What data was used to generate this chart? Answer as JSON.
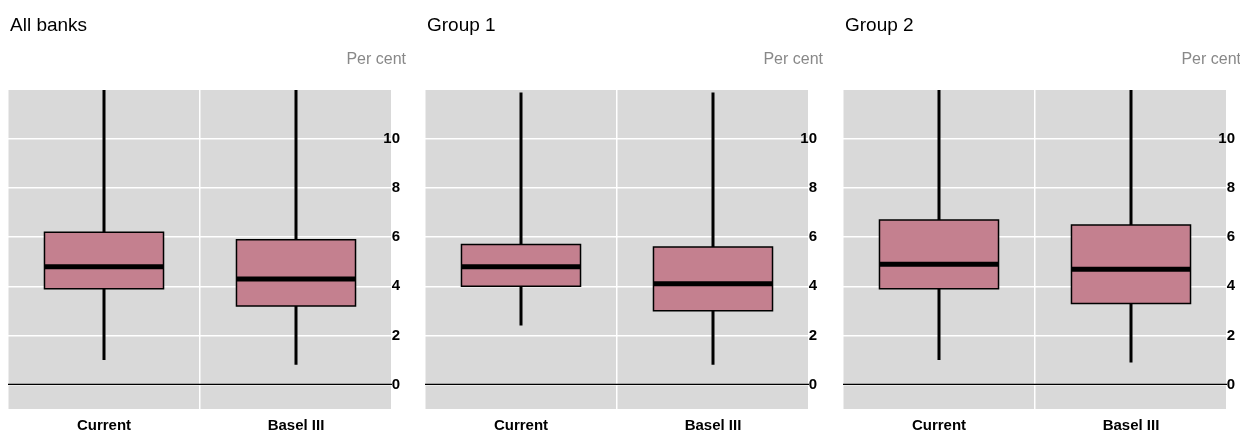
{
  "chart_data": [
    {
      "type": "box",
      "title": "All banks",
      "ylabel": "Per cent",
      "categories": [
        "Current",
        "Basel III"
      ],
      "color": "#c4808f",
      "ylim": [
        -1,
        12
      ],
      "yticks": [
        0,
        2,
        4,
        6,
        8,
        10
      ],
      "grid": true,
      "boxes": [
        {
          "low": 1.0,
          "q1": 3.9,
          "median": 4.8,
          "q3": 6.2,
          "high": 12
        },
        {
          "low": 0.8,
          "q1": 3.2,
          "median": 4.3,
          "q3": 5.9,
          "high": 12
        }
      ]
    },
    {
      "type": "box",
      "title": "Group 1",
      "ylabel": "Per cent",
      "categories": [
        "Current",
        "Basel III"
      ],
      "color": "#c4808f",
      "ylim": [
        -1,
        12
      ],
      "yticks": [
        0,
        2,
        4,
        6,
        8,
        10
      ],
      "grid": true,
      "boxes": [
        {
          "low": 2.4,
          "q1": 4.0,
          "median": 4.8,
          "q3": 5.7,
          "high": 11.9
        },
        {
          "low": 0.8,
          "q1": 3.0,
          "median": 4.1,
          "q3": 5.6,
          "high": 11.9
        }
      ]
    },
    {
      "type": "box",
      "title": "Group 2",
      "ylabel": "Per cent",
      "categories": [
        "Current",
        "Basel III"
      ],
      "color": "#c4808f",
      "ylim": [
        -1,
        12
      ],
      "yticks": [
        0,
        2,
        4,
        6,
        8,
        10
      ],
      "grid": true,
      "boxes": [
        {
          "low": 1.0,
          "q1": 3.9,
          "median": 4.9,
          "q3": 6.7,
          "high": 12
        },
        {
          "low": 0.9,
          "q1": 3.3,
          "median": 4.7,
          "q3": 6.5,
          "high": 12
        }
      ]
    }
  ]
}
